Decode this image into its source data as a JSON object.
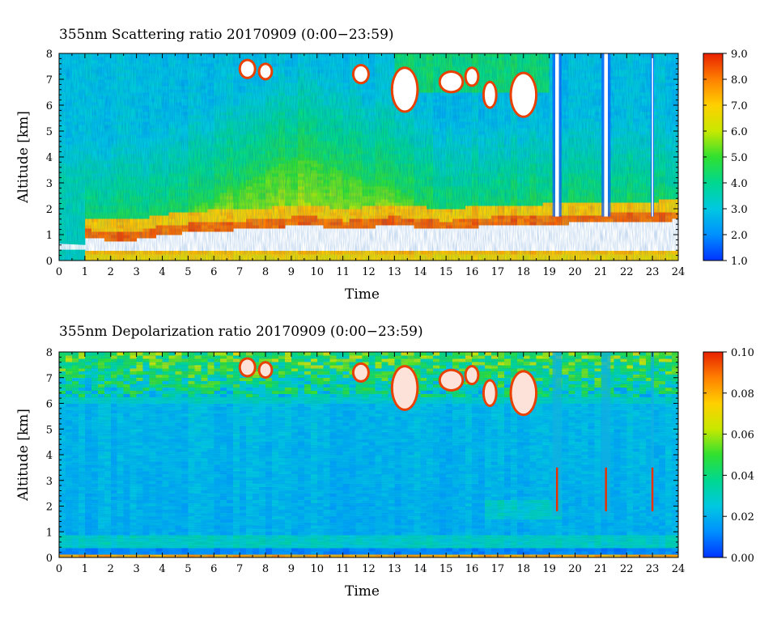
{
  "chart_data": [
    {
      "type": "heatmap",
      "title": "355nm Scattering ratio  20170909 (0:00−23:59)",
      "xlabel": "Time",
      "ylabel": "Altitude [km]",
      "xlim": [
        0,
        24
      ],
      "ylim": [
        0,
        8
      ],
      "x_ticks": [
        "0",
        "1",
        "2",
        "3",
        "4",
        "5",
        "6",
        "7",
        "8",
        "9",
        "10",
        "11",
        "12",
        "13",
        "14",
        "15",
        "16",
        "17",
        "18",
        "19",
        "20",
        "21",
        "22",
        "23",
        "24"
      ],
      "y_ticks": [
        "0",
        "1",
        "2",
        "3",
        "4",
        "5",
        "6",
        "7",
        "8"
      ],
      "colorbar": {
        "min": 1.0,
        "max": 9.0,
        "ticks": [
          "1.0",
          "2.0",
          "3.0",
          "4.0",
          "5.0",
          "6.0",
          "7.0",
          "8.0",
          "9.0"
        ],
        "over_color": "#ffffff"
      },
      "grid": false,
      "regime_description_values": {
        "near_surface_layer_top_km": [
          0.9,
          0.85,
          0.8,
          0.8,
          1.0,
          1.1,
          1.15,
          1.2,
          1.25,
          1.35,
          1.35,
          1.2,
          1.3,
          1.35,
          1.3,
          1.2,
          1.3,
          1.35,
          1.35,
          1.4,
          1.45,
          1.45,
          1.5,
          1.5,
          1.6
        ],
        "aerosol_layer_top_km": [
          1.0,
          1.0,
          1.0,
          1.2,
          1.5,
          2.0,
          2.5,
          3.0,
          3.5,
          4.0,
          3.8,
          3.5,
          3.0,
          2.8,
          2.2,
          1.6,
          1.6,
          1.7,
          1.8,
          1.9,
          1.9,
          1.85,
          1.8,
          1.8,
          1.8
        ]
      }
    },
    {
      "type": "heatmap",
      "title": "355nm Depolarization ratio  20170909 (0:00−23:59)",
      "xlabel": "Time",
      "ylabel": "Altitude [km]",
      "xlim": [
        0,
        24
      ],
      "ylim": [
        0,
        8
      ],
      "x_ticks": [
        "0",
        "1",
        "2",
        "3",
        "4",
        "5",
        "6",
        "7",
        "8",
        "9",
        "10",
        "11",
        "12",
        "13",
        "14",
        "15",
        "16",
        "17",
        "18",
        "19",
        "20",
        "21",
        "22",
        "23",
        "24"
      ],
      "y_ticks": [
        "0",
        "1",
        "2",
        "3",
        "4",
        "5",
        "6",
        "7",
        "8"
      ],
      "colorbar": {
        "min": 0.0,
        "max": 0.1,
        "ticks": [
          "0.00",
          "0.02",
          "0.04",
          "0.06",
          "0.08",
          "0.10"
        ],
        "over_color": "#ffffff"
      },
      "grid": false
    }
  ],
  "colormap": [
    "#0033ff",
    "#0090ff",
    "#00c8e0",
    "#00d890",
    "#30e030",
    "#c8e800",
    "#ffd000",
    "#ff8000",
    "#e82000"
  ],
  "clouds": [
    {
      "t": 7.3,
      "alt": 7.4,
      "w": 0.5,
      "h": 0.6
    },
    {
      "t": 8.0,
      "alt": 7.3,
      "w": 0.4,
      "h": 0.5
    },
    {
      "t": 11.7,
      "alt": 7.2,
      "w": 0.5,
      "h": 0.6
    },
    {
      "t": 13.4,
      "alt": 6.6,
      "w": 0.9,
      "h": 1.6
    },
    {
      "t": 15.2,
      "alt": 6.9,
      "w": 0.8,
      "h": 0.7
    },
    {
      "t": 16.0,
      "alt": 7.1,
      "w": 0.4,
      "h": 0.6
    },
    {
      "t": 16.7,
      "alt": 6.4,
      "w": 0.4,
      "h": 0.9
    },
    {
      "t": 18.0,
      "alt": 6.4,
      "w": 0.9,
      "h": 1.6
    }
  ],
  "columns": [
    {
      "t": 19.3,
      "w": 0.35
    },
    {
      "t": 21.2,
      "w": 0.35
    },
    {
      "t": 23.0,
      "w": 0.12
    }
  ]
}
